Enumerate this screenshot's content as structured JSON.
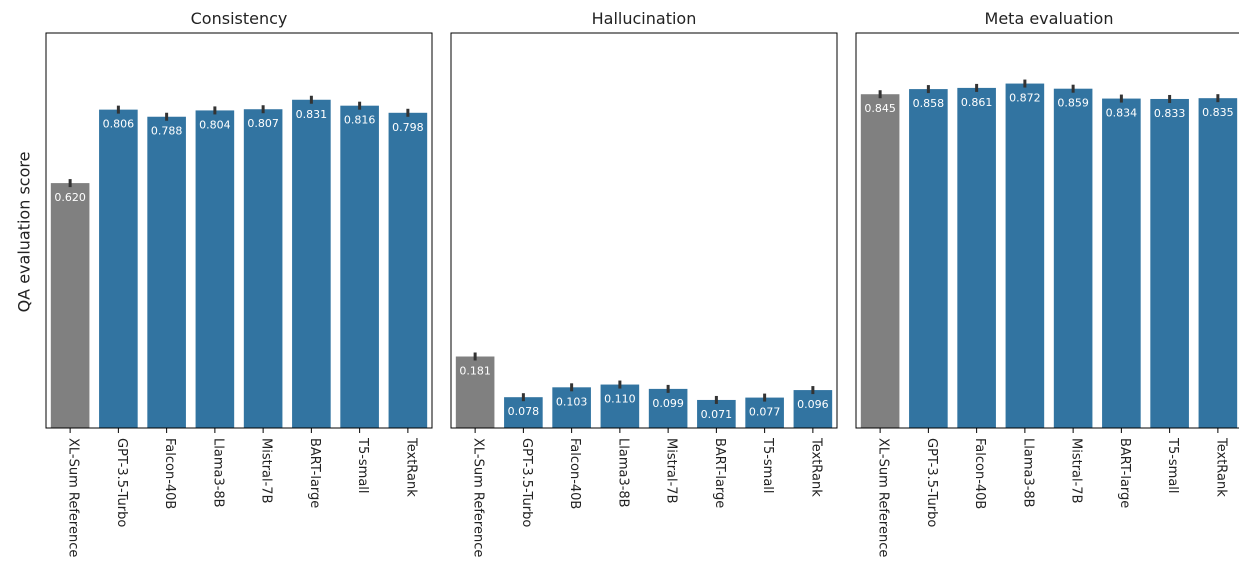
{
  "figure": {
    "ylabel": "QA evaluation score"
  },
  "colors": {
    "reference_bar": "#808080",
    "model_bar": "#3274a1",
    "error_bar": "#333333",
    "value_label": "#ffffff"
  },
  "chart_data": [
    {
      "type": "bar",
      "title": "Consistency",
      "ylabel": "QA evaluation score",
      "ylim": [
        0,
        1.0
      ],
      "grid": false,
      "categories": [
        "XL-Sum Reference",
        "GPT-3.5-Turbo",
        "Falcon-40B",
        "Llama3-8B",
        "Mistral-7B",
        "BART-large",
        "T5-small",
        "TextRank"
      ],
      "values": [
        0.62,
        0.806,
        0.788,
        0.804,
        0.807,
        0.831,
        0.816,
        0.798
      ],
      "value_labels": [
        "0.620",
        "0.806",
        "0.788",
        "0.804",
        "0.807",
        "0.831",
        "0.816",
        "0.798"
      ],
      "error_bars": true
    },
    {
      "type": "bar",
      "title": "Hallucination",
      "ylim": [
        0,
        1.0
      ],
      "grid": false,
      "categories": [
        "XL-Sum Reference",
        "GPT-3.5-Turbo",
        "Falcon-40B",
        "Llama3-8B",
        "Mistral-7B",
        "BART-large",
        "T5-small",
        "TextRank"
      ],
      "values": [
        0.181,
        0.078,
        0.103,
        0.11,
        0.099,
        0.071,
        0.077,
        0.096
      ],
      "value_labels": [
        "0.181",
        "0.078",
        "0.103",
        "0.110",
        "0.099",
        "0.071",
        "0.077",
        "0.096"
      ],
      "error_bars": true
    },
    {
      "type": "bar",
      "title": "Meta evaluation",
      "ylim": [
        0,
        1.0
      ],
      "grid": false,
      "categories": [
        "XL-Sum Reference",
        "GPT-3.5-Turbo",
        "Falcon-40B",
        "Llama3-8B",
        "Mistral-7B",
        "BART-large",
        "T5-small",
        "TextRank"
      ],
      "values": [
        0.845,
        0.858,
        0.861,
        0.872,
        0.859,
        0.834,
        0.833,
        0.835
      ],
      "value_labels": [
        "0.845",
        "0.858",
        "0.861",
        "0.872",
        "0.859",
        "0.834",
        "0.833",
        "0.835"
      ],
      "error_bars": true
    }
  ]
}
